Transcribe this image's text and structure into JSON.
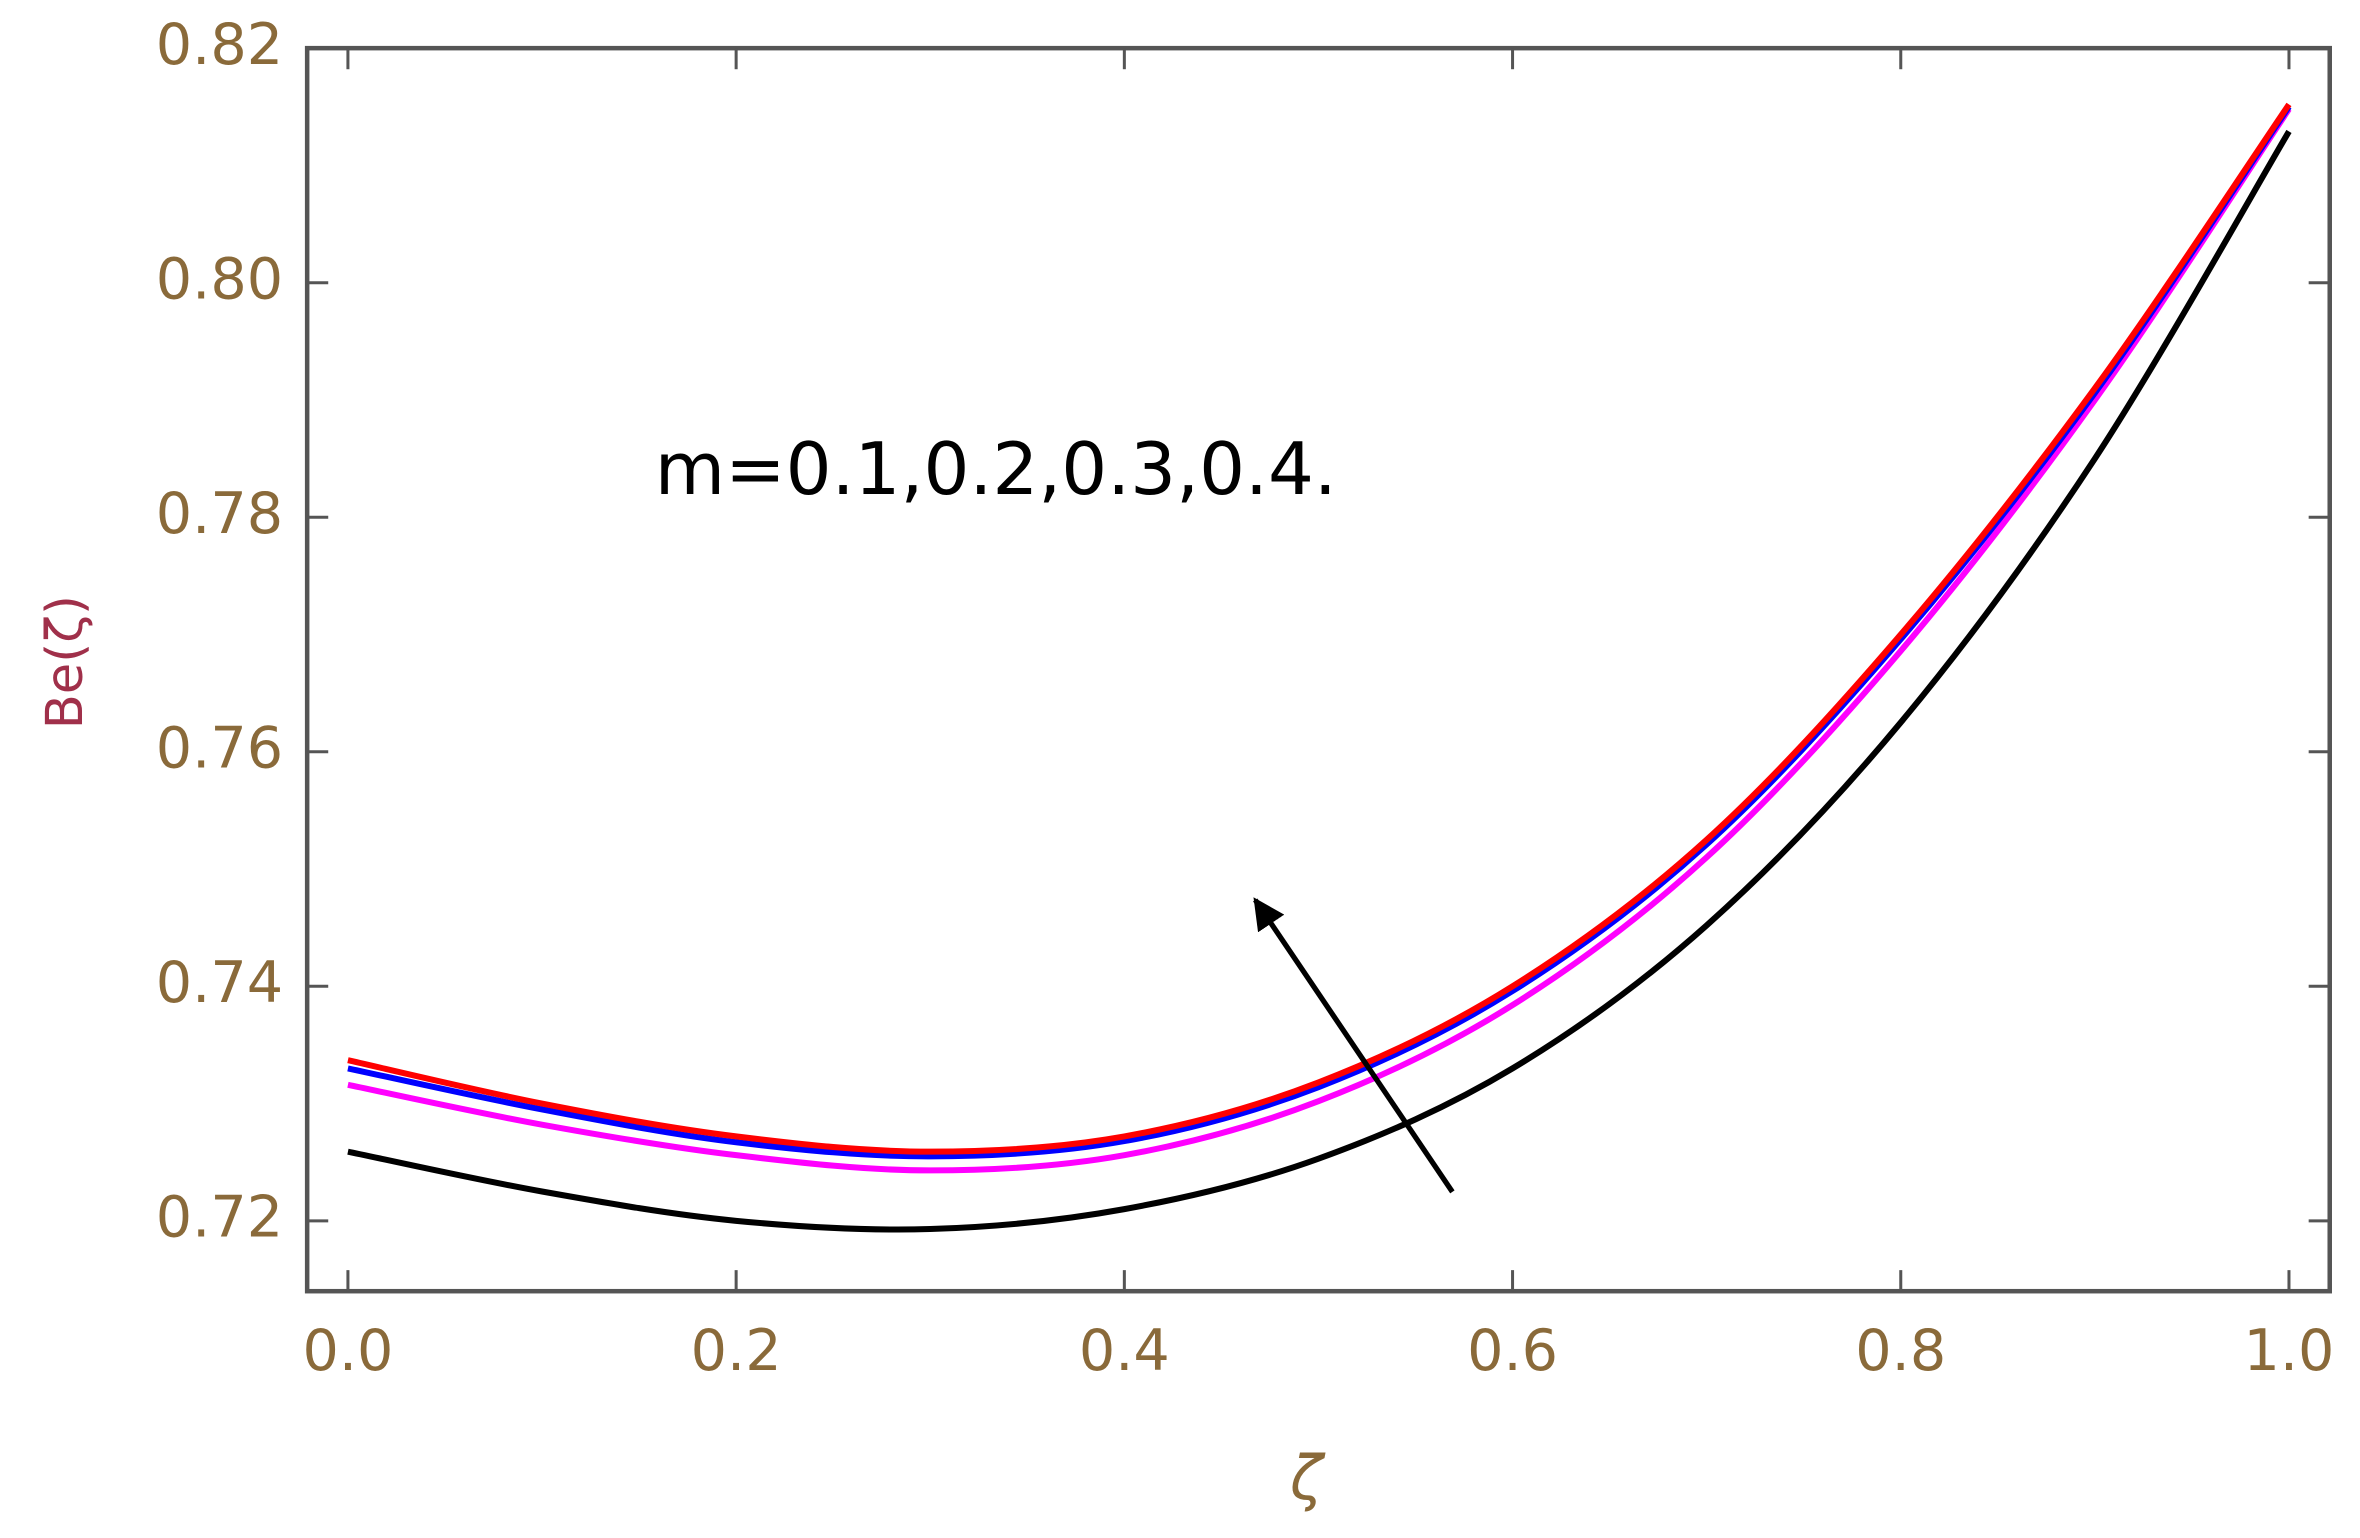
{
  "chart_data": {
    "type": "line",
    "x": [
      0,
      0.1,
      0.2,
      0.3,
      0.4,
      0.5,
      0.6,
      0.7,
      0.8,
      0.9,
      1.0
    ],
    "series": [
      {
        "color": "#000000",
        "values": [
          0.7259,
          0.7225,
          0.72,
          0.7193,
          0.721,
          0.7253,
          0.733,
          0.7452,
          0.7625,
          0.785,
          0.8129
        ]
      },
      {
        "color": "#ff00ff",
        "values": [
          0.7316,
          0.7282,
          0.7256,
          0.7243,
          0.7256,
          0.7302,
          0.7384,
          0.751,
          0.7686,
          0.79,
          0.8148
        ]
      },
      {
        "color": "#0000ff",
        "values": [
          0.733,
          0.7295,
          0.7267,
          0.7255,
          0.7268,
          0.7314,
          0.7396,
          0.7521,
          0.7696,
          0.7906,
          0.815
        ]
      },
      {
        "color": "#ff0000",
        "values": [
          0.7337,
          0.73,
          0.7272,
          0.7259,
          0.7272,
          0.7318,
          0.74,
          0.7525,
          0.77,
          0.791,
          0.8152
        ]
      }
    ],
    "x_label": "ζ",
    "y_label": "Be(ζ)",
    "annotation": "m=0.1,0.2,0.3,0.4.",
    "xlim": [
      -0.021,
      1.021
    ],
    "ylim": [
      0.714,
      0.82
    ],
    "xticks": [
      {
        "value": 0,
        "label": "0.0"
      },
      0.2,
      0.4,
      0.6,
      0.8,
      {
        "value": 1,
        "label": "1.0"
      }
    ],
    "yticks": [
      0.72,
      0.74,
      0.76,
      0.78,
      {
        "value": 0.8,
        "label": "0.80"
      },
      0.82
    ]
  }
}
